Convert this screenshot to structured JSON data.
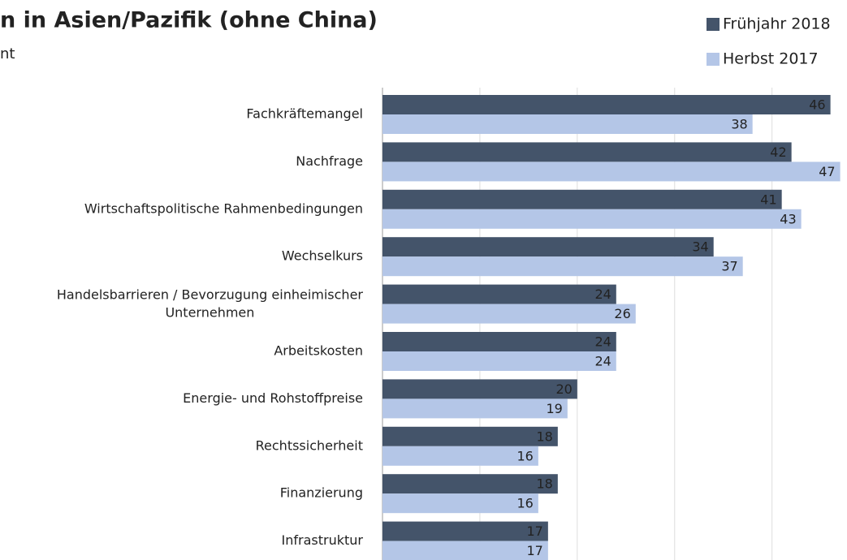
{
  "chart_data": {
    "type": "hbar",
    "title": "n in Asien/Pazifik (ohne China)",
    "subtitle": "nt",
    "categories": [
      "Fachkräftemangel",
      "Nachfrage",
      "Wirtschaftspolitische Rahmenbedingungen",
      "Wechselkurs",
      "Handelsbarrieren / Bevorzugung einheimischer\nUnternehmen",
      "Arbeitskosten",
      "Energie- und Rohstoffpreise",
      "Rechtssicherheit",
      "Finanzierung",
      "Infrastruktur"
    ],
    "series": [
      {
        "name": "Frühjahr 2018",
        "color": "#44546a",
        "values": [
          46,
          42,
          41,
          34,
          24,
          24,
          20,
          18,
          18,
          17
        ]
      },
      {
        "name": "Herbst 2017",
        "color": "#b4c6e7",
        "values": [
          38,
          47,
          43,
          37,
          26,
          24,
          19,
          16,
          16,
          17
        ]
      }
    ],
    "xlim": [
      0,
      47.7
    ],
    "xticks": [
      0,
      10,
      20,
      30,
      40
    ],
    "grid": true,
    "legend": "top-right"
  }
}
